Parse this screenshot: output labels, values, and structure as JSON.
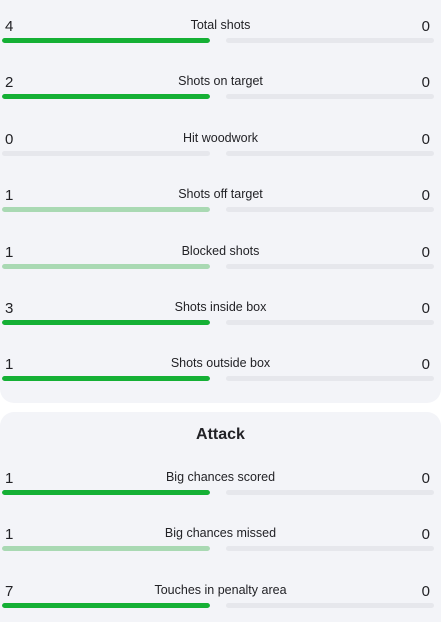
{
  "colors": {
    "card_background": "#f3f4f8",
    "track": "#e6e7ec",
    "bar_strong": "#15b035",
    "bar_weak": "#a9d9b3"
  },
  "shots": {
    "rows": [
      {
        "label": "Total shots",
        "left": "4",
        "right": "0",
        "left_fill": 1,
        "right_fill": 0,
        "tone": "strong"
      },
      {
        "label": "Shots on target",
        "left": "2",
        "right": "0",
        "left_fill": 1,
        "right_fill": 0,
        "tone": "strong"
      },
      {
        "label": "Hit woodwork",
        "left": "0",
        "right": "0",
        "left_fill": 0,
        "right_fill": 0,
        "tone": "strong"
      },
      {
        "label": "Shots off target",
        "left": "1",
        "right": "0",
        "left_fill": 1,
        "right_fill": 0,
        "tone": "weak"
      },
      {
        "label": "Blocked shots",
        "left": "1",
        "right": "0",
        "left_fill": 1,
        "right_fill": 0,
        "tone": "weak"
      },
      {
        "label": "Shots inside box",
        "left": "3",
        "right": "0",
        "left_fill": 1,
        "right_fill": 0,
        "tone": "strong"
      },
      {
        "label": "Shots outside box",
        "left": "1",
        "right": "0",
        "left_fill": 1,
        "right_fill": 0,
        "tone": "strong"
      }
    ]
  },
  "attack": {
    "title": "Attack",
    "rows": [
      {
        "label": "Big chances scored",
        "left": "1",
        "right": "0",
        "left_fill": 1,
        "right_fill": 0,
        "tone": "strong"
      },
      {
        "label": "Big chances missed",
        "left": "1",
        "right": "0",
        "left_fill": 1,
        "right_fill": 0,
        "tone": "weak"
      },
      {
        "label": "Touches in penalty area",
        "left": "7",
        "right": "0",
        "left_fill": 1,
        "right_fill": 0,
        "tone": "strong"
      }
    ]
  }
}
